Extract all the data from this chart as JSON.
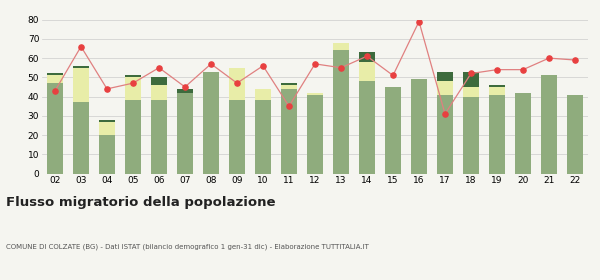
{
  "years": [
    "02",
    "03",
    "04",
    "05",
    "06",
    "07",
    "08",
    "09",
    "10",
    "11",
    "12",
    "13",
    "14",
    "15",
    "16",
    "17",
    "18",
    "19",
    "20",
    "21",
    "22"
  ],
  "iscritti_altri_comuni": [
    47,
    37,
    20,
    38,
    38,
    42,
    53,
    38,
    38,
    44,
    41,
    64,
    48,
    45,
    49,
    41,
    40,
    41,
    42,
    51,
    41
  ],
  "iscritti_estero": [
    4,
    18,
    7,
    12,
    8,
    0,
    0,
    17,
    6,
    2,
    1,
    4,
    10,
    0,
    0,
    7,
    5,
    4,
    0,
    0,
    0
  ],
  "iscritti_altri": [
    1,
    1,
    1,
    1,
    4,
    2,
    0,
    0,
    0,
    1,
    0,
    0,
    5,
    0,
    0,
    5,
    8,
    1,
    0,
    0,
    0
  ],
  "cancellati": [
    43,
    66,
    44,
    47,
    55,
    45,
    57,
    47,
    56,
    35,
    57,
    55,
    61,
    51,
    79,
    31,
    52,
    54,
    54,
    60,
    59
  ],
  "color_altri_comuni": "#8fac7d",
  "color_estero": "#e8eda8",
  "color_altri": "#3d6b3d",
  "color_cancellati": "#e84040",
  "color_cancellati_line": "#e08080",
  "ylim": [
    0,
    80
  ],
  "yticks": [
    0,
    10,
    20,
    30,
    40,
    50,
    60,
    70,
    80
  ],
  "title": "Flusso migratorio della popolazione",
  "subtitle": "COMUNE DI COLZATE (BG) - Dati ISTAT (bilancio demografico 1 gen-31 dic) - Elaborazione TUTTITALIA.IT",
  "bg_color": "#f5f5f0",
  "grid_color": "#cccccc"
}
